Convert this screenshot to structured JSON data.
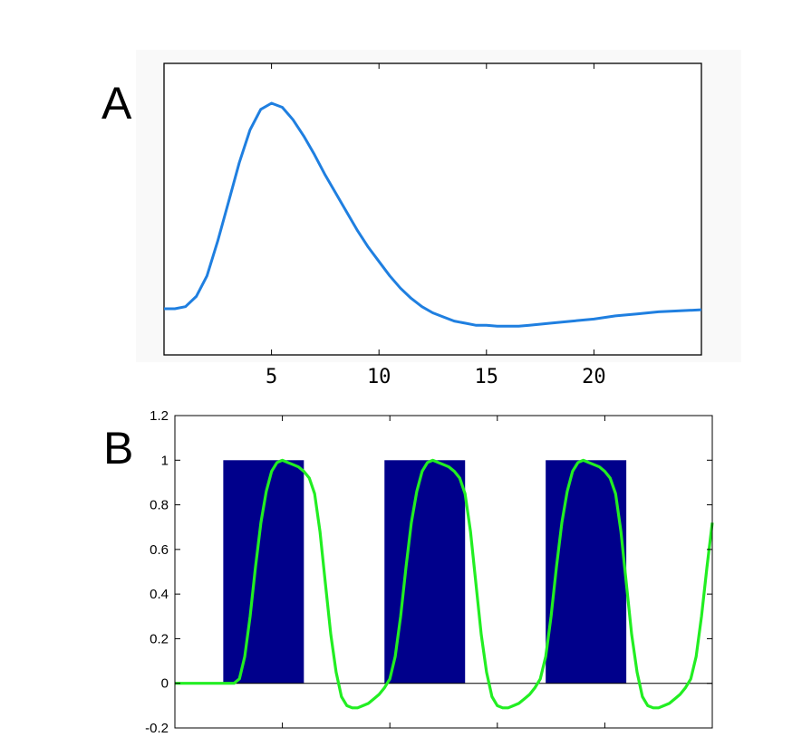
{
  "chart_data": [
    {
      "panel": "A",
      "type": "line",
      "title": "",
      "xlabel": "",
      "ylabel": "",
      "xlim": [
        0,
        25
      ],
      "ylim": [
        -0.2,
        1.0
      ],
      "x_ticks": [
        5,
        10,
        15,
        20
      ],
      "x_tick_labels": [
        "5",
        "10",
        "15",
        "20"
      ],
      "y_ticks_shown": false,
      "grid": false,
      "line_color": "#1f7fe0",
      "series": [
        {
          "x": [
            0,
            0.5,
            1,
            1.5,
            2,
            2.5,
            3,
            3.5,
            4,
            4.5,
            5,
            5.5,
            6,
            6.5,
            7,
            7.5,
            8,
            8.5,
            9,
            9.5,
            10,
            10.5,
            11,
            11.5,
            12,
            12.5,
            13,
            13.5,
            14,
            14.5,
            15,
            15.5,
            16,
            16.5,
            17,
            18,
            19,
            20,
            21,
            22,
            23,
            24,
            25
          ],
          "y": [
            0.0,
            0.0,
            0.01,
            0.06,
            0.16,
            0.33,
            0.52,
            0.71,
            0.87,
            0.97,
            1.0,
            0.98,
            0.92,
            0.84,
            0.75,
            0.65,
            0.56,
            0.47,
            0.38,
            0.3,
            0.23,
            0.16,
            0.1,
            0.05,
            0.01,
            -0.02,
            -0.04,
            -0.06,
            -0.07,
            -0.08,
            -0.08,
            -0.085,
            -0.085,
            -0.085,
            -0.08,
            -0.07,
            -0.06,
            -0.05,
            -0.035,
            -0.025,
            -0.015,
            -0.01,
            -0.005
          ]
        }
      ]
    },
    {
      "panel": "B",
      "type": "line",
      "title": "",
      "xlabel": "",
      "ylabel": "",
      "xlim": [
        0,
        100
      ],
      "ylim": [
        -0.2,
        1.2
      ],
      "y_ticks": [
        -0.2,
        0,
        0.2,
        0.4,
        0.6,
        0.8,
        1,
        1.2
      ],
      "y_tick_labels": [
        "-0.2",
        "0",
        "0.2",
        "0.4",
        "0.6",
        "0.8",
        "1",
        "1.2"
      ],
      "x_ticks": [
        20,
        40,
        60,
        80
      ],
      "x_tick_labels_shown": false,
      "grid": false,
      "blocks": {
        "color": "#00008b",
        "height": 1,
        "intervals": [
          [
            9,
            24
          ],
          [
            39,
            54
          ],
          [
            69,
            84
          ]
        ]
      },
      "series": [
        {
          "color": "#22ee22",
          "x": [
            0,
            9,
            11,
            12,
            13,
            14,
            15,
            16,
            17,
            18,
            19,
            20,
            21,
            22,
            23,
            24,
            25,
            26,
            27,
            28,
            29,
            30,
            31,
            32,
            33,
            34,
            35,
            36,
            37,
            38,
            39,
            40,
            41,
            42,
            43,
            44,
            45,
            46,
            47,
            48,
            49,
            50,
            51,
            52,
            53,
            54,
            55,
            56,
            57,
            58,
            59,
            60,
            61,
            62,
            63,
            64,
            65,
            66,
            67,
            68,
            69,
            70,
            71,
            72,
            73,
            74,
            75,
            76,
            77,
            78,
            79,
            80,
            81,
            82,
            83,
            84,
            85,
            86,
            87,
            88,
            89,
            90,
            91,
            92,
            93,
            94,
            95,
            96,
            97,
            98,
            99,
            100
          ],
          "y": [
            0,
            0,
            0,
            0.02,
            0.12,
            0.3,
            0.52,
            0.72,
            0.86,
            0.95,
            0.99,
            1.0,
            0.99,
            0.98,
            0.97,
            0.95,
            0.92,
            0.85,
            0.68,
            0.45,
            0.22,
            0.05,
            -0.06,
            -0.1,
            -0.11,
            -0.11,
            -0.1,
            -0.09,
            -0.07,
            -0.05,
            -0.02,
            0.02,
            0.12,
            0.3,
            0.52,
            0.72,
            0.86,
            0.95,
            0.99,
            1.0,
            0.99,
            0.98,
            0.97,
            0.95,
            0.92,
            0.85,
            0.68,
            0.45,
            0.22,
            0.05,
            -0.06,
            -0.1,
            -0.11,
            -0.11,
            -0.1,
            -0.09,
            -0.07,
            -0.05,
            -0.02,
            0.02,
            0.12,
            0.3,
            0.52,
            0.72,
            0.86,
            0.95,
            0.99,
            1.0,
            0.99,
            0.98,
            0.97,
            0.95,
            0.92,
            0.85,
            0.68,
            0.45,
            0.22,
            0.05,
            -0.06,
            -0.1,
            -0.11,
            -0.11,
            -0.1,
            -0.09,
            -0.07,
            -0.05,
            -0.02,
            0.02,
            0.12,
            0.3,
            0.52,
            0.72
          ]
        }
      ]
    }
  ],
  "panels": {
    "a_label": "A",
    "b_label": "B"
  }
}
